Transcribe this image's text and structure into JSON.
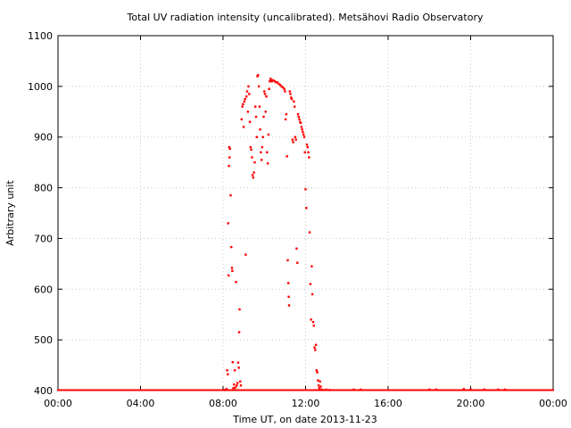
{
  "chart_data": {
    "type": "scatter",
    "title": "Total UV radiation intensity (uncalibrated). Metsähovi Radio Observatory",
    "xlabel": "Time UT, on date 2013-11-23",
    "ylabel": "Arbitrary unit",
    "xlim": [
      "00:00",
      "24:00"
    ],
    "ylim": [
      400,
      1100
    ],
    "x_ticks": [
      "00:00",
      "04:00",
      "08:00",
      "12:00",
      "16:00",
      "20:00",
      "00:00"
    ],
    "y_ticks": [
      "400",
      "500",
      "600",
      "700",
      "800",
      "900",
      "1000",
      "1100"
    ],
    "grid": true,
    "marker_color": "#ff0000",
    "series": [
      {
        "baseline_value": 400,
        "baseline_x_range": [
          "00:00",
          "24:00"
        ],
        "points": [
          [
            "08:05",
            401
          ],
          [
            "08:10",
            403
          ],
          [
            "08:12",
            440
          ],
          [
            "08:14",
            432
          ],
          [
            "08:15",
            730
          ],
          [
            "08:16",
            627
          ],
          [
            "08:17",
            843
          ],
          [
            "08:18",
            880
          ],
          [
            "08:19",
            860
          ],
          [
            "08:20",
            877
          ],
          [
            "08:22",
            785
          ],
          [
            "08:24",
            683
          ],
          [
            "08:26",
            642
          ],
          [
            "08:27",
            636
          ],
          [
            "08:28",
            456
          ],
          [
            "08:30",
            405
          ],
          [
            "08:32",
            412
          ],
          [
            "08:34",
            440
          ],
          [
            "08:36",
            406
          ],
          [
            "08:38",
            614
          ],
          [
            "08:40",
            410
          ],
          [
            "08:42",
            415
          ],
          [
            "08:44",
            455
          ],
          [
            "08:46",
            445
          ],
          [
            "08:47",
            515
          ],
          [
            "08:48",
            560
          ],
          [
            "08:50",
            418
          ],
          [
            "08:52",
            410
          ],
          [
            "08:54",
            935
          ],
          [
            "08:56",
            960
          ],
          [
            "08:58",
            965
          ],
          [
            "09:00",
            920
          ],
          [
            "09:02",
            970
          ],
          [
            "09:04",
            975
          ],
          [
            "09:06",
            668
          ],
          [
            "09:08",
            980
          ],
          [
            "09:10",
            990
          ],
          [
            "09:12",
            950
          ],
          [
            "09:14",
            1000
          ],
          [
            "09:16",
            985
          ],
          [
            "09:18",
            930
          ],
          [
            "09:20",
            880
          ],
          [
            "09:22",
            875
          ],
          [
            "09:24",
            860
          ],
          [
            "09:26",
            825
          ],
          [
            "09:28",
            820
          ],
          [
            "09:30",
            830
          ],
          [
            "09:32",
            850
          ],
          [
            "09:34",
            960
          ],
          [
            "09:36",
            940
          ],
          [
            "09:38",
            900
          ],
          [
            "09:40",
            1020
          ],
          [
            "09:42",
            1022
          ],
          [
            "09:44",
            1000
          ],
          [
            "09:46",
            960
          ],
          [
            "09:48",
            915
          ],
          [
            "09:50",
            870
          ],
          [
            "09:52",
            855
          ],
          [
            "09:54",
            880
          ],
          [
            "09:56",
            900
          ],
          [
            "09:58",
            940
          ],
          [
            "10:00",
            990
          ],
          [
            "10:02",
            985
          ],
          [
            "10:04",
            950
          ],
          [
            "10:06",
            980
          ],
          [
            "10:08",
            870
          ],
          [
            "10:10",
            848
          ],
          [
            "10:12",
            905
          ],
          [
            "10:14",
            995
          ],
          [
            "10:16",
            1010
          ],
          [
            "10:18",
            1015
          ],
          [
            "10:20",
            1012
          ],
          [
            "10:22",
            1010
          ],
          [
            "10:26",
            1012
          ],
          [
            "10:30",
            1010
          ],
          [
            "10:34",
            1008
          ],
          [
            "10:38",
            1008
          ],
          [
            "10:42",
            1005
          ],
          [
            "10:46",
            1003
          ],
          [
            "10:50",
            1000
          ],
          [
            "10:54",
            998
          ],
          [
            "10:58",
            995
          ],
          [
            "11:00",
            990
          ],
          [
            "11:02",
            935
          ],
          [
            "11:04",
            945
          ],
          [
            "11:06",
            862
          ],
          [
            "11:08",
            657
          ],
          [
            "11:10",
            612
          ],
          [
            "11:11",
            585
          ],
          [
            "11:12",
            568
          ],
          [
            "11:14",
            990
          ],
          [
            "11:16",
            985
          ],
          [
            "11:18",
            978
          ],
          [
            "11:20",
            975
          ],
          [
            "11:22",
            895
          ],
          [
            "11:24",
            890
          ],
          [
            "11:26",
            970
          ],
          [
            "11:28",
            960
          ],
          [
            "11:30",
            900
          ],
          [
            "11:32",
            895
          ],
          [
            "11:34",
            680
          ],
          [
            "11:36",
            652
          ],
          [
            "11:38",
            945
          ],
          [
            "11:40",
            940
          ],
          [
            "11:42",
            935
          ],
          [
            "11:44",
            930
          ],
          [
            "11:46",
            928
          ],
          [
            "11:48",
            920
          ],
          [
            "11:50",
            915
          ],
          [
            "11:52",
            910
          ],
          [
            "11:54",
            905
          ],
          [
            "11:56",
            900
          ],
          [
            "11:58",
            870
          ],
          [
            "12:00",
            797
          ],
          [
            "12:02",
            760
          ],
          [
            "12:04",
            885
          ],
          [
            "12:06",
            880
          ],
          [
            "12:08",
            870
          ],
          [
            "12:10",
            860
          ],
          [
            "12:12",
            712
          ],
          [
            "12:14",
            610
          ],
          [
            "12:16",
            540
          ],
          [
            "12:18",
            645
          ],
          [
            "12:20",
            590
          ],
          [
            "12:22",
            535
          ],
          [
            "12:24",
            528
          ],
          [
            "12:26",
            485
          ],
          [
            "12:28",
            480
          ],
          [
            "12:30",
            490
          ],
          [
            "12:32",
            440
          ],
          [
            "12:34",
            436
          ],
          [
            "12:36",
            420
          ],
          [
            "12:38",
            410
          ],
          [
            "12:40",
            405
          ],
          [
            "12:42",
            418
          ],
          [
            "12:44",
            408
          ],
          [
            "12:46",
            402
          ],
          [
            "12:50",
            401
          ],
          [
            "13:00",
            402
          ],
          [
            "13:10",
            401
          ],
          [
            "14:20",
            402
          ],
          [
            "14:40",
            402
          ],
          [
            "18:00",
            402
          ],
          [
            "18:20",
            402
          ],
          [
            "19:40",
            403
          ],
          [
            "20:00",
            402
          ],
          [
            "20:40",
            402
          ],
          [
            "21:20",
            402
          ],
          [
            "21:40",
            402
          ]
        ]
      }
    ]
  }
}
